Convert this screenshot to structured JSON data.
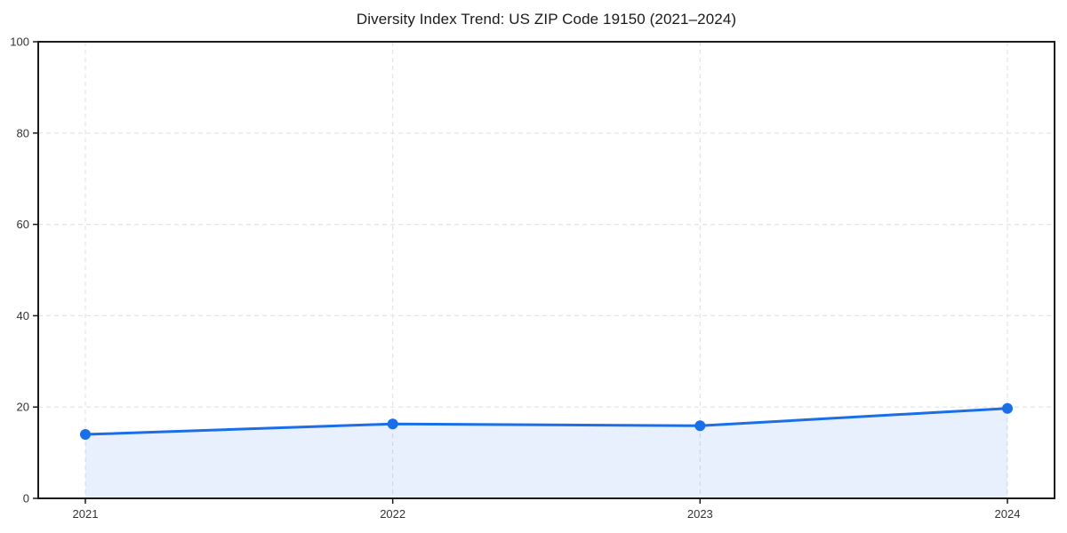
{
  "page": {
    "background_color": "#ffffff"
  },
  "chart_data": {
    "type": "line",
    "title": "Diversity Index Trend: US ZIP Code 19150 (2021–2024)",
    "categories": [
      "2021",
      "2022",
      "2023",
      "2024"
    ],
    "series": [
      {
        "name": "Diversity Index",
        "values": [
          14.0,
          16.3,
          15.9,
          19.7
        ]
      }
    ],
    "xlabel": "",
    "ylabel": "",
    "ylim": [
      0,
      100
    ],
    "yticks": [
      0,
      20,
      40,
      60,
      80,
      100
    ],
    "grid": true,
    "grid_style": "dashed",
    "legend_position": "none",
    "marker": "circle",
    "colors": {
      "line": "#1a6ee8",
      "marker": "#1a6ee8",
      "area_fill": "#1a6ee8",
      "grid": "#e4e4e4",
      "axis_border": "#1a1a1a",
      "tick_labels": "#333333",
      "title": "#1a1a1a"
    },
    "area_fill_opacity": 0.1
  }
}
